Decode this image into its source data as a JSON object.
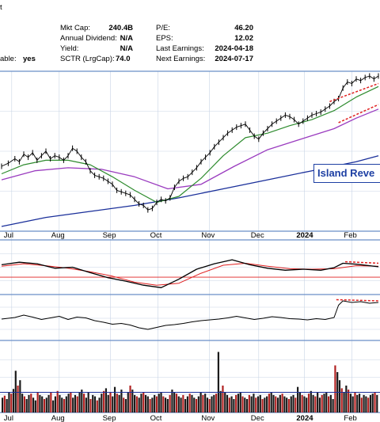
{
  "header": {
    "fragment_top": "t",
    "fragment_left": "able:",
    "fragment_left_value": "yes",
    "fields": [
      {
        "label": "Mkt Cap:",
        "value": "240.4B"
      },
      {
        "label": "Annual Dividend:",
        "value": "N/A"
      },
      {
        "label": "Yield:",
        "value": "N/A"
      },
      {
        "label": "SCTR (LrgCap):",
        "value": "74.0"
      },
      {
        "label": "P/E:",
        "value": "46.20"
      },
      {
        "label": "EPS:",
        "value": "12.02"
      },
      {
        "label": "Last Earnings:",
        "value": "2024-04-18"
      },
      {
        "label": "Next Earnings:",
        "value": "2024-07-17"
      }
    ]
  },
  "colors": {
    "price": "#000000",
    "ma_short": "#2e8b2e",
    "ma_mid": "#9a3bbf",
    "ma_long": "#1a2f9a",
    "trendline": "#e02020",
    "volume": "#1a1a1a",
    "volume_up": "#b02020",
    "grid": "#c8d4e6",
    "panel_border": "#6b8fc8",
    "annotation_text": "#1d3fa3"
  },
  "annotation": {
    "text": "Island Reve"
  },
  "chart_data": {
    "type": "line",
    "x_axis_labels": [
      "Jul",
      "Aug",
      "Sep",
      "Oct",
      "Nov",
      "Dec",
      "2024",
      "Feb"
    ],
    "x_axis_label_positions": [
      0.01,
      0.135,
      0.27,
      0.395,
      0.53,
      0.66,
      0.78,
      0.905
    ],
    "grid": true,
    "price_panel": {
      "ylim": [
        0,
        100
      ],
      "price": [
        [
          0,
          40
        ],
        [
          3,
          42
        ],
        [
          6,
          45
        ],
        [
          8,
          43
        ],
        [
          10,
          48
        ],
        [
          12,
          46
        ],
        [
          14,
          49
        ],
        [
          16,
          44
        ],
        [
          18,
          47
        ],
        [
          20,
          50
        ],
        [
          22,
          45
        ],
        [
          24,
          47
        ],
        [
          26,
          46
        ],
        [
          28,
          44
        ],
        [
          30,
          47
        ],
        [
          32,
          52
        ],
        [
          34,
          50
        ],
        [
          36,
          46
        ],
        [
          38,
          43
        ],
        [
          40,
          37
        ],
        [
          42,
          34
        ],
        [
          44,
          33
        ],
        [
          46,
          32
        ],
        [
          48,
          30
        ],
        [
          50,
          28
        ],
        [
          52,
          24
        ],
        [
          54,
          23
        ],
        [
          56,
          22
        ],
        [
          58,
          21
        ],
        [
          60,
          18
        ],
        [
          62,
          15
        ],
        [
          64,
          14
        ],
        [
          66,
          11
        ],
        [
          68,
          12
        ],
        [
          70,
          16
        ],
        [
          72,
          18
        ],
        [
          74,
          17
        ],
        [
          76,
          19
        ],
        [
          78,
          26
        ],
        [
          80,
          30
        ],
        [
          82,
          32
        ],
        [
          84,
          33
        ],
        [
          86,
          36
        ],
        [
          88,
          39
        ],
        [
          90,
          43
        ],
        [
          92,
          46
        ],
        [
          94,
          49
        ],
        [
          96,
          53
        ],
        [
          98,
          56
        ],
        [
          100,
          59
        ],
        [
          102,
          62
        ],
        [
          104,
          64
        ],
        [
          106,
          66
        ],
        [
          108,
          67
        ],
        [
          110,
          68
        ],
        [
          112,
          64
        ],
        [
          114,
          60
        ],
        [
          116,
          58
        ],
        [
          118,
          62
        ],
        [
          120,
          65
        ],
        [
          122,
          68
        ],
        [
          124,
          70
        ],
        [
          126,
          72
        ],
        [
          128,
          74
        ],
        [
          130,
          73
        ],
        [
          132,
          71
        ],
        [
          134,
          68
        ],
        [
          136,
          70
        ],
        [
          138,
          72
        ],
        [
          140,
          74
        ],
        [
          142,
          75
        ],
        [
          144,
          76
        ],
        [
          146,
          78
        ],
        [
          148,
          80
        ],
        [
          150,
          83
        ],
        [
          152,
          85
        ],
        [
          154,
          92
        ],
        [
          156,
          96
        ],
        [
          158,
          95
        ],
        [
          160,
          98
        ],
        [
          162,
          97
        ],
        [
          164,
          99
        ],
        [
          166,
          100
        ],
        [
          168,
          98
        ],
        [
          170,
          100
        ]
      ],
      "ma_short": [
        [
          0,
          35
        ],
        [
          10,
          41
        ],
        [
          20,
          44
        ],
        [
          30,
          44
        ],
        [
          40,
          41
        ],
        [
          50,
          33
        ],
        [
          60,
          24
        ],
        [
          70,
          16
        ],
        [
          80,
          20
        ],
        [
          90,
          32
        ],
        [
          100,
          47
        ],
        [
          110,
          59
        ],
        [
          120,
          62
        ],
        [
          130,
          67
        ],
        [
          140,
          71
        ],
        [
          150,
          77
        ],
        [
          160,
          86
        ],
        [
          170,
          93
        ]
      ],
      "ma_mid": [
        [
          0,
          31
        ],
        [
          15,
          37
        ],
        [
          30,
          39
        ],
        [
          45,
          38
        ],
        [
          60,
          33
        ],
        [
          75,
          25
        ],
        [
          90,
          28
        ],
        [
          105,
          40
        ],
        [
          120,
          51
        ],
        [
          135,
          58
        ],
        [
          150,
          65
        ],
        [
          160,
          72
        ],
        [
          170,
          78
        ]
      ],
      "ma_long": [
        [
          0,
          0
        ],
        [
          20,
          6
        ],
        [
          40,
          10
        ],
        [
          60,
          14
        ],
        [
          80,
          19
        ],
        [
          100,
          25
        ],
        [
          120,
          31
        ],
        [
          140,
          37
        ],
        [
          160,
          43
        ],
        [
          170,
          47
        ]
      ],
      "trendlines": [
        {
          "from": [
            148,
            83
          ],
          "to": [
            170,
            95
          ]
        },
        {
          "from": [
            152,
            69
          ],
          "to": [
            170,
            81
          ]
        }
      ]
    },
    "oscillator_panel": {
      "ylim": [
        0,
        100
      ],
      "reference_line": 30,
      "line_a": [
        [
          0,
          55
        ],
        [
          8,
          60
        ],
        [
          16,
          57
        ],
        [
          24,
          48
        ],
        [
          32,
          50
        ],
        [
          40,
          39
        ],
        [
          48,
          29
        ],
        [
          56,
          22
        ],
        [
          64,
          14
        ],
        [
          72,
          9
        ],
        [
          80,
          26
        ],
        [
          88,
          46
        ],
        [
          96,
          57
        ],
        [
          104,
          65
        ],
        [
          112,
          55
        ],
        [
          120,
          48
        ],
        [
          128,
          44
        ],
        [
          136,
          46
        ],
        [
          144,
          44
        ],
        [
          150,
          49
        ],
        [
          154,
          58
        ],
        [
          160,
          56
        ],
        [
          170,
          51
        ]
      ],
      "line_b": [
        [
          0,
          52
        ],
        [
          10,
          57
        ],
        [
          20,
          53
        ],
        [
          30,
          48
        ],
        [
          40,
          41
        ],
        [
          50,
          32
        ],
        [
          60,
          20
        ],
        [
          70,
          14
        ],
        [
          80,
          18
        ],
        [
          90,
          38
        ],
        [
          100,
          54
        ],
        [
          110,
          58
        ],
        [
          120,
          52
        ],
        [
          130,
          47
        ],
        [
          140,
          46
        ],
        [
          150,
          47
        ],
        [
          160,
          53
        ],
        [
          170,
          52
        ]
      ],
      "trendline": {
        "from": [
          155,
          61
        ],
        "to": [
          170,
          58
        ]
      }
    },
    "momentum_panel": {
      "ylim": [
        0,
        100
      ],
      "line": [
        [
          0,
          48
        ],
        [
          6,
          52
        ],
        [
          10,
          58
        ],
        [
          14,
          53
        ],
        [
          18,
          47
        ],
        [
          22,
          51
        ],
        [
          26,
          55
        ],
        [
          30,
          47
        ],
        [
          34,
          53
        ],
        [
          38,
          51
        ],
        [
          42,
          44
        ],
        [
          46,
          40
        ],
        [
          50,
          35
        ],
        [
          54,
          37
        ],
        [
          58,
          33
        ],
        [
          62,
          26
        ],
        [
          66,
          22
        ],
        [
          70,
          27
        ],
        [
          74,
          32
        ],
        [
          78,
          34
        ],
        [
          82,
          37
        ],
        [
          86,
          41
        ],
        [
          90,
          44
        ],
        [
          94,
          46
        ],
        [
          98,
          48
        ],
        [
          102,
          51
        ],
        [
          106,
          55
        ],
        [
          110,
          51
        ],
        [
          114,
          47
        ],
        [
          118,
          50
        ],
        [
          122,
          54
        ],
        [
          126,
          52
        ],
        [
          130,
          49
        ],
        [
          134,
          48
        ],
        [
          138,
          46
        ],
        [
          142,
          49
        ],
        [
          146,
          47
        ],
        [
          150,
          52
        ],
        [
          152,
          83
        ],
        [
          154,
          94
        ],
        [
          158,
          90
        ],
        [
          162,
          92
        ],
        [
          166,
          88
        ],
        [
          170,
          90
        ]
      ],
      "trendline": {
        "from": [
          151,
          97
        ],
        "to": [
          170,
          94
        ]
      }
    },
    "volume_panel": {
      "ylim": [
        0,
        100
      ],
      "average_level": 30,
      "bars": [
        22,
        25,
        20,
        30,
        28,
        35,
        62,
        40,
        48,
        28,
        24,
        20,
        26,
        28,
        22,
        18,
        30,
        26,
        24,
        20,
        22,
        26,
        30,
        18,
        24,
        32,
        26,
        22,
        20,
        24,
        28,
        30,
        22,
        26,
        24,
        30,
        34,
        28,
        22,
        30,
        20,
        26,
        24,
        18,
        22,
        28,
        32,
        36,
        26,
        30,
        24,
        38,
        28,
        26,
        34,
        22,
        20,
        30,
        40,
        34,
        26,
        24,
        22,
        28,
        30,
        26,
        24,
        20,
        22,
        26,
        24,
        28,
        30,
        24,
        22,
        20,
        26,
        34,
        30,
        28,
        24,
        22,
        26,
        20,
        24,
        28,
        26,
        22,
        20,
        24,
        30,
        26,
        28,
        22,
        20,
        24,
        26,
        28,
        90,
        32,
        40,
        30,
        26,
        22,
        24,
        20,
        26,
        28,
        30,
        24,
        22,
        20,
        26,
        24,
        28,
        22,
        24,
        26,
        20,
        22,
        24,
        28,
        30,
        26,
        24,
        22,
        26,
        28,
        24,
        22,
        20,
        24,
        26,
        22,
        38,
        30,
        26,
        24,
        22,
        28,
        32,
        26,
        24,
        30,
        22,
        26,
        28,
        30,
        24,
        26,
        20,
        70,
        60,
        48,
        36,
        30,
        40,
        34,
        28,
        24,
        30,
        26,
        28,
        22,
        26,
        24,
        22,
        26,
        28,
        30,
        26
      ]
    }
  }
}
